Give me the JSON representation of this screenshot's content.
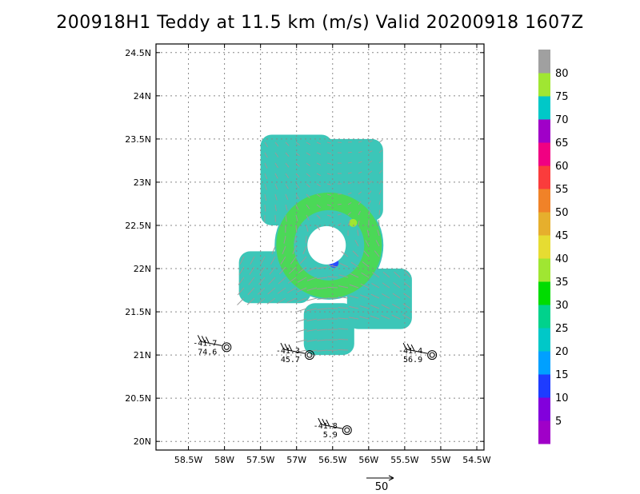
{
  "chart_data": {
    "type": "heatmap",
    "title": "200918H1 Teddy at 11.5 km (m/s) Valid 20200918 1607Z",
    "xlim": [
      -58.95,
      -54.4
    ],
    "ylim": [
      19.9,
      24.6
    ],
    "x_ticks": [
      {
        "value": -58.5,
        "label": "58.5W"
      },
      {
        "value": -58.0,
        "label": "58W"
      },
      {
        "value": -57.5,
        "label": "57.5W"
      },
      {
        "value": -57.0,
        "label": "57W"
      },
      {
        "value": -56.5,
        "label": "56.5W"
      },
      {
        "value": -56.0,
        "label": "56W"
      },
      {
        "value": -55.5,
        "label": "55.5W"
      },
      {
        "value": -55.0,
        "label": "55W"
      },
      {
        "value": -54.5,
        "label": "54.5W"
      }
    ],
    "y_ticks": [
      {
        "value": 20.0,
        "label": "20N"
      },
      {
        "value": 20.5,
        "label": "20.5N"
      },
      {
        "value": 21.0,
        "label": "21N"
      },
      {
        "value": 21.5,
        "label": "21.5N"
      },
      {
        "value": 22.0,
        "label": "22N"
      },
      {
        "value": 22.5,
        "label": "22.5N"
      },
      {
        "value": 23.0,
        "label": "23N"
      },
      {
        "value": 23.5,
        "label": "23.5N"
      },
      {
        "value": 24.0,
        "label": "24N"
      },
      {
        "value": 24.5,
        "label": "24.5N"
      }
    ],
    "grid": true,
    "colorbar": {
      "labels": [
        "5",
        "10",
        "15",
        "20",
        "25",
        "30",
        "35",
        "40",
        "45",
        "50",
        "55",
        "60",
        "65",
        "70",
        "75",
        "80"
      ],
      "colors": [
        "#a000c8",
        "#8200dc",
        "#1e3cff",
        "#00a0ff",
        "#00c8c8",
        "#00d28c",
        "#00dc00",
        "#a0e632",
        "#e6dc32",
        "#e6af2d",
        "#f08228",
        "#fa3c3c",
        "#f00082",
        "#a000c8",
        "#00c8c8",
        "#a0e632",
        "#a0a0a0"
      ]
    },
    "storm_center": {
      "lon": -56.55,
      "lat": 22.27
    },
    "wind_field_regions": [
      {
        "name": "northwest lobe",
        "lon": [
          -57.5,
          -56.5
        ],
        "lat": [
          22.5,
          23.55
        ]
      },
      {
        "name": "northeast lobe",
        "lon": [
          -56.8,
          -55.8
        ],
        "lat": [
          22.55,
          23.5
        ]
      },
      {
        "name": "west arm",
        "lon": [
          -57.8,
          -56.8
        ],
        "lat": [
          21.6,
          22.2
        ]
      },
      {
        "name": "south stem",
        "lon": [
          -56.9,
          -56.2
        ],
        "lat": [
          21.0,
          21.6
        ]
      },
      {
        "name": "east arm",
        "lon": [
          -56.3,
          -55.4
        ],
        "lat": [
          21.3,
          22.0
        ]
      }
    ],
    "observations": [
      {
        "lon": -57.97,
        "lat": 21.09,
        "top": "-41.7",
        "bottom": "74.6"
      },
      {
        "lon": -56.82,
        "lat": 21.0,
        "top": "-41.3",
        "bottom": "45.7"
      },
      {
        "lon": -55.12,
        "lat": 21.0,
        "top": "-41.4",
        "bottom": "56.9"
      },
      {
        "lon": -56.3,
        "lat": 20.13,
        "top": "-41.8",
        "bottom": "5.9"
      }
    ],
    "reference_vector": {
      "label": "50"
    }
  }
}
